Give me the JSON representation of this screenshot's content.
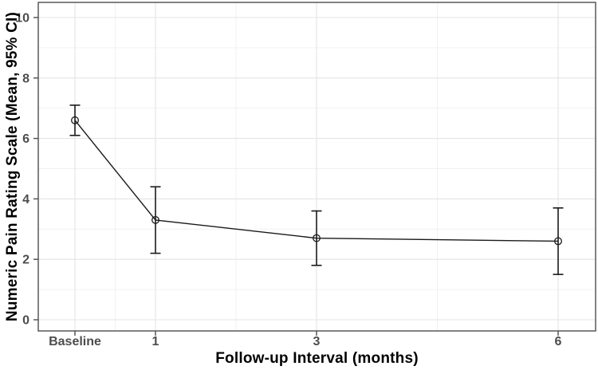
{
  "chart_data": {
    "type": "line",
    "title": "",
    "xlabel": "Follow-up Interval (months)",
    "ylabel": "Numeric Pain Rating Scale (Mean, 95% CI)",
    "x_axis_scale": "linear-months",
    "x_tick_labels": [
      "Baseline",
      "1",
      "3",
      "6"
    ],
    "x_values_months": [
      0,
      1,
      3,
      6
    ],
    "series": [
      {
        "name": "Numeric Pain Rating Scale",
        "means": [
          6.6,
          3.3,
          2.7,
          2.6
        ],
        "ci_low": [
          6.1,
          2.2,
          1.8,
          1.5
        ],
        "ci_high": [
          7.1,
          4.4,
          3.6,
          3.7
        ]
      }
    ],
    "ylim": [
      0,
      10
    ],
    "y_major_ticks": [
      0,
      2,
      4,
      6,
      8,
      10
    ],
    "y_minor_gridlines": [
      1,
      3,
      5,
      7,
      9
    ],
    "x_minor_gridlines_months": [
      0.5,
      2,
      4.5
    ],
    "grid": true,
    "legend": false,
    "marker": "open-circle",
    "colors": {
      "data": "#1a1a1a",
      "panel_border": "#4d4d4d",
      "tick_mark": "#4d4d4d",
      "tick_text": "#4d4d4d",
      "grid_major": "#e4e4e4",
      "grid_minor": "#f0f0f0",
      "axis_title": "#000000",
      "background": "#ffffff"
    }
  }
}
